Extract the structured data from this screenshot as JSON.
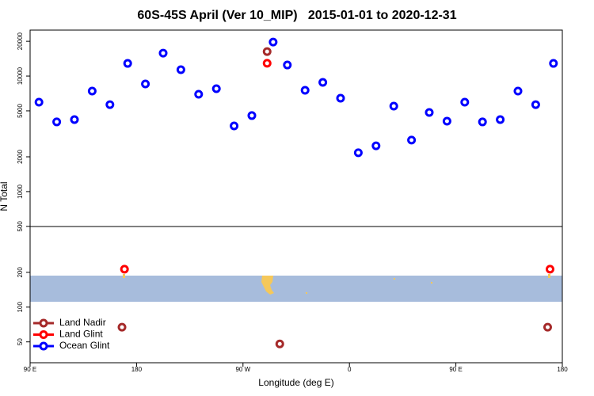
{
  "chart_data": {
    "type": "scatter",
    "title": "60S-45S April (Ver 10_MIP)   2015-01-01 to 2020-12-31",
    "x_label": "Longitude (deg E)",
    "y_label": "N Total",
    "log_y": true,
    "legend": "bottom-left",
    "xlim": [
      90,
      540
    ],
    "xticks": [
      {
        "value": 90,
        "label": "90 E"
      },
      {
        "value": 180,
        "label": "180"
      },
      {
        "value": 270,
        "label": "90 W"
      },
      {
        "value": 360,
        "label": "0"
      },
      {
        "value": 450,
        "label": "90 E"
      },
      {
        "value": 540,
        "label": "180"
      }
    ],
    "ylim": [
      33,
      25000
    ],
    "yticks": [
      20000,
      10000,
      5000,
      2000,
      1000,
      500,
      200,
      100,
      50
    ],
    "series": [
      {
        "name": "Land Nadir",
        "color": "#a52a2a",
        "x": [
          290.4,
          167.7,
          301.1,
          527.6
        ],
        "values": [
          16300,
          67,
          48,
          67
        ]
      },
      {
        "name": "Land Glint",
        "color": "#ff0000",
        "x": [
          290.4,
          169.8,
          529.6
        ],
        "values": [
          12900,
          213,
          213
        ]
      },
      {
        "name": "Ocean Glint",
        "color": "#0000ff",
        "x": [
          97.5,
          112.5,
          127.5,
          142.5,
          157.5,
          172.5,
          187.5,
          202.5,
          217.5,
          232.5,
          247.5,
          262.5,
          277.5,
          295.5,
          307.5,
          322.5,
          337.5,
          352.5,
          367.5,
          382.5,
          397.5,
          412.5,
          427.5,
          442.5,
          457.5,
          472.5,
          487.5,
          502.5,
          517.5,
          532.5
        ],
        "values": [
          5940,
          4010,
          4200,
          7410,
          5660,
          12870,
          8540,
          15800,
          11350,
          6960,
          7770,
          3700,
          4550,
          19700,
          12470,
          7530,
          8820,
          6430,
          2170,
          2490,
          5490,
          2790,
          4840,
          4070,
          5940,
          4010,
          4200,
          7410,
          5660,
          12870
        ]
      }
    ]
  }
}
